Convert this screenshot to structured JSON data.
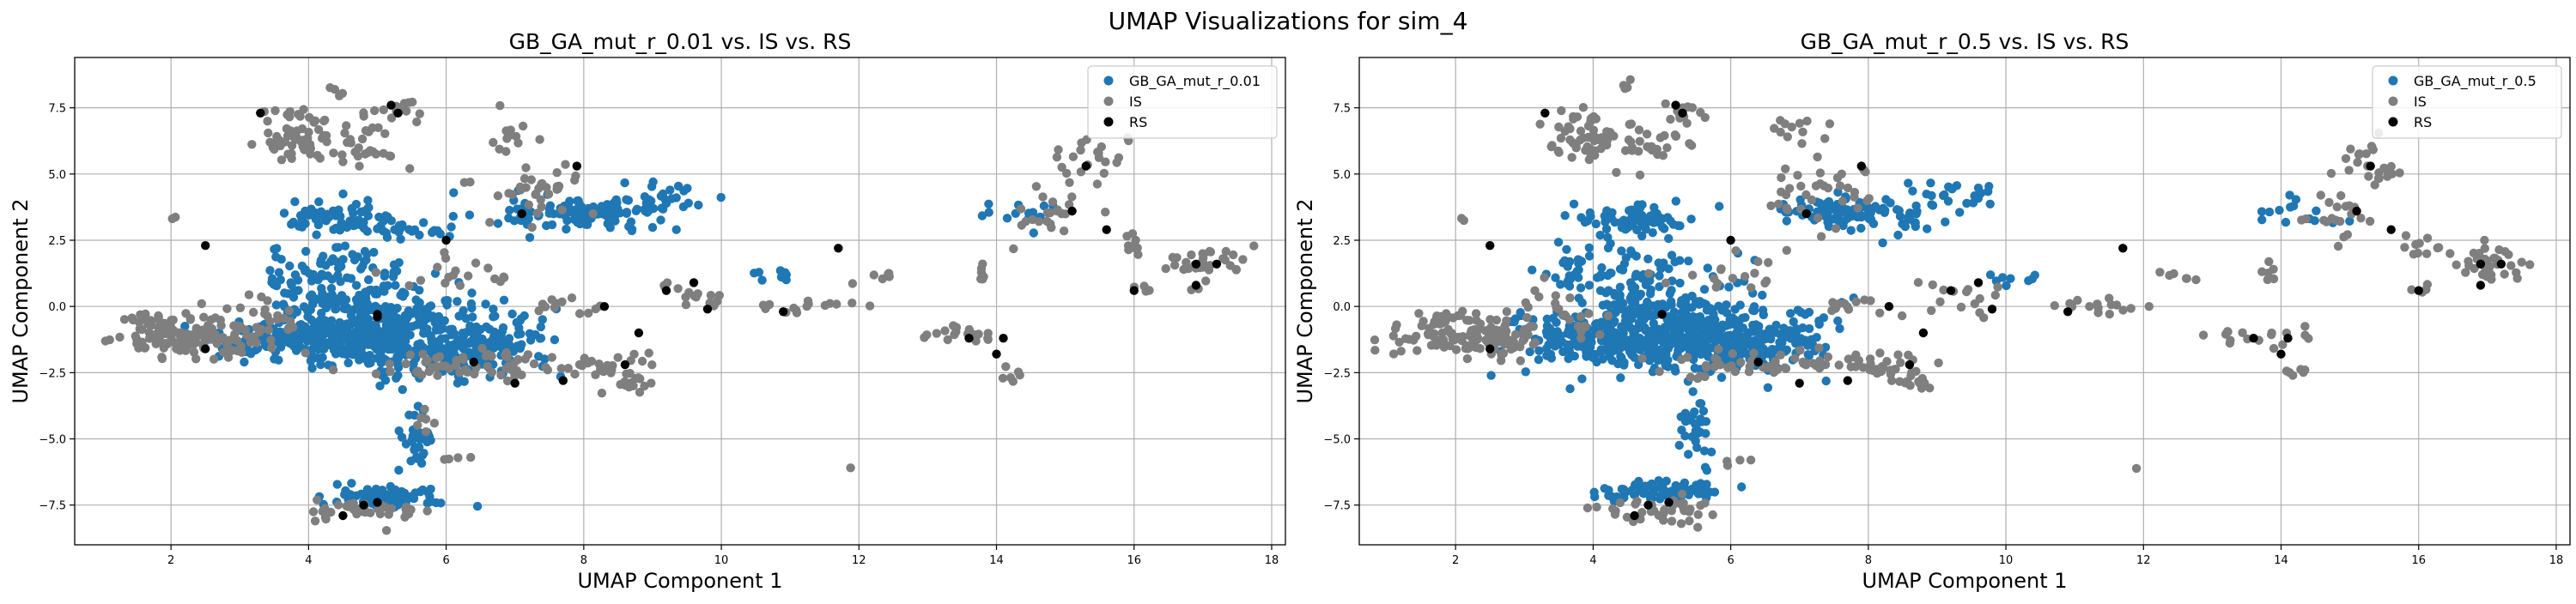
{
  "suptitle": "UMAP Visualizations for sim_4",
  "colors": {
    "ga": "#1f77b4",
    "is": "#7f7f7f",
    "rs": "#000000",
    "grid": "#b0b0b0"
  },
  "chart_data": [
    {
      "type": "scatter",
      "title": "GB_GA_mut_r_0.01 vs. IS vs. RS",
      "xlabel": "UMAP Component 1",
      "ylabel": "UMAP Component 2",
      "xlim": [
        0.6,
        18.2
      ],
      "ylim": [
        -9.0,
        9.4
      ],
      "xticks": [
        2,
        4,
        6,
        8,
        10,
        12,
        14,
        16,
        18
      ],
      "yticks": [
        -7.5,
        -5.0,
        -2.5,
        0.0,
        2.5,
        5.0,
        7.5
      ],
      "grid": true,
      "legend_position": "top-right",
      "series": [
        {
          "name": "GB_GA_mut_r_0.01",
          "color": "#1f77b4",
          "clusters": [
            {
              "x": 5.0,
              "y": -1.0,
              "sx": 0.8,
              "sy": 0.7,
              "n": 420
            },
            {
              "x": 3.6,
              "y": -1.2,
              "sx": 0.5,
              "sy": 0.4,
              "n": 90
            },
            {
              "x": 6.2,
              "y": -1.6,
              "sx": 0.5,
              "sy": 0.5,
              "n": 90
            },
            {
              "x": 4.6,
              "y": 1.0,
              "sx": 0.6,
              "sy": 0.8,
              "n": 90
            },
            {
              "x": 4.5,
              "y": 3.3,
              "sx": 0.4,
              "sy": 0.3,
              "n": 70
            },
            {
              "x": 5.6,
              "y": 2.8,
              "sx": 0.3,
              "sy": 0.2,
              "n": 20
            },
            {
              "x": 8.0,
              "y": 3.5,
              "sx": 0.6,
              "sy": 0.3,
              "n": 110
            },
            {
              "x": 9.2,
              "y": 4.1,
              "sx": 0.3,
              "sy": 0.3,
              "n": 25
            },
            {
              "x": 7.0,
              "y": -1.2,
              "sx": 0.4,
              "sy": 0.6,
              "n": 40
            },
            {
              "x": 5.1,
              "y": -7.2,
              "sx": 0.4,
              "sy": 0.2,
              "n": 70
            },
            {
              "x": 5.6,
              "y": -5.0,
              "sx": 0.15,
              "sy": 0.6,
              "n": 30
            },
            {
              "x": 10.7,
              "y": 1.2,
              "sx": 0.2,
              "sy": 0.2,
              "n": 8
            },
            {
              "x": 14.3,
              "y": 3.6,
              "sx": 0.3,
              "sy": 0.3,
              "n": 14
            },
            {
              "x": 3.7,
              "y": 1.3,
              "sx": 0.3,
              "sy": 0.4,
              "n": 20
            }
          ]
        },
        {
          "name": "IS",
          "color": "#7f7f7f",
          "clusters": [
            {
              "x": 2.3,
              "y": -1.2,
              "sx": 0.55,
              "sy": 0.35,
              "n": 120
            },
            {
              "x": 1.8,
              "y": -0.5,
              "sx": 0.3,
              "sy": 0.15,
              "n": 20
            },
            {
              "x": 3.9,
              "y": 6.3,
              "sx": 0.3,
              "sy": 0.4,
              "n": 50
            },
            {
              "x": 5.3,
              "y": 7.3,
              "sx": 0.2,
              "sy": 0.2,
              "n": 15
            },
            {
              "x": 4.8,
              "y": 6.0,
              "sx": 0.3,
              "sy": 0.4,
              "n": 25
            },
            {
              "x": 7.0,
              "y": 6.6,
              "sx": 0.2,
              "sy": 0.3,
              "n": 12
            },
            {
              "x": 3.8,
              "y": 7.2,
              "sx": 0.2,
              "sy": 0.2,
              "n": 10
            },
            {
              "x": 7.2,
              "y": 4.5,
              "sx": 0.4,
              "sy": 0.6,
              "n": 35
            },
            {
              "x": 6.5,
              "y": -2.2,
              "sx": 0.8,
              "sy": 0.25,
              "n": 60
            },
            {
              "x": 8.4,
              "y": -2.3,
              "sx": 0.35,
              "sy": 0.3,
              "n": 25
            },
            {
              "x": 8.7,
              "y": -2.9,
              "sx": 0.15,
              "sy": 0.15,
              "n": 10
            },
            {
              "x": 9.5,
              "y": 0.3,
              "sx": 0.3,
              "sy": 0.4,
              "n": 15
            },
            {
              "x": 7.8,
              "y": 0.0,
              "sx": 0.3,
              "sy": 0.15,
              "n": 12
            },
            {
              "x": 11.3,
              "y": 0.0,
              "sx": 0.35,
              "sy": 0.15,
              "n": 15
            },
            {
              "x": 12.5,
              "y": 1.1,
              "sx": 0.2,
              "sy": 0.1,
              "n": 6
            },
            {
              "x": 13.6,
              "y": -1.1,
              "sx": 0.35,
              "sy": 0.2,
              "n": 18
            },
            {
              "x": 14.2,
              "y": -2.5,
              "sx": 0.1,
              "sy": 0.2,
              "n": 6
            },
            {
              "x": 13.8,
              "y": 1.3,
              "sx": 0.1,
              "sy": 0.3,
              "n": 6
            },
            {
              "x": 15.3,
              "y": 5.4,
              "sx": 0.3,
              "sy": 0.6,
              "n": 25
            },
            {
              "x": 14.8,
              "y": 3.2,
              "sx": 0.3,
              "sy": 0.4,
              "n": 20
            },
            {
              "x": 16.0,
              "y": 2.4,
              "sx": 0.15,
              "sy": 0.3,
              "n": 10
            },
            {
              "x": 17.0,
              "y": 1.6,
              "sx": 0.3,
              "sy": 0.35,
              "n": 35
            },
            {
              "x": 16.1,
              "y": 0.7,
              "sx": 0.1,
              "sy": 0.1,
              "n": 4
            },
            {
              "x": 4.9,
              "y": -7.7,
              "sx": 0.4,
              "sy": 0.25,
              "n": 40
            },
            {
              "x": 3.4,
              "y": -0.3,
              "sx": 0.4,
              "sy": 0.5,
              "n": 25
            },
            {
              "x": 6.0,
              "y": 1.2,
              "sx": 0.6,
              "sy": 0.5,
              "n": 18
            },
            {
              "x": 5.7,
              "y": -4.0,
              "sx": 0.1,
              "sy": 0.4,
              "n": 6
            },
            {
              "x": 6.1,
              "y": -5.8,
              "sx": 0.1,
              "sy": 0.1,
              "n": 4
            },
            {
              "x": 11.9,
              "y": -6.1,
              "sx": 0.01,
              "sy": 0.01,
              "n": 1
            },
            {
              "x": 4.5,
              "y": 8.3,
              "sx": 0.1,
              "sy": 0.2,
              "n": 4
            },
            {
              "x": 2.1,
              "y": 3.3,
              "sx": 0.05,
              "sy": 0.05,
              "n": 2
            }
          ]
        },
        {
          "name": "RS",
          "color": "#000000",
          "points": [
            [
              3.3,
              7.3
            ],
            [
              5.2,
              7.6
            ],
            [
              2.5,
              2.3
            ],
            [
              2.5,
              -1.6
            ],
            [
              5.0,
              -0.4
            ],
            [
              5.0,
              -7.4
            ],
            [
              4.5,
              -7.9
            ],
            [
              4.8,
              -7.5
            ],
            [
              5.3,
              7.3
            ],
            [
              6.4,
              -2.1
            ],
            [
              7.1,
              3.5
            ],
            [
              7.9,
              5.3
            ],
            [
              8.3,
              0.0
            ],
            [
              8.8,
              -1.0
            ],
            [
              7.7,
              -2.8
            ],
            [
              8.6,
              -2.2
            ],
            [
              9.6,
              0.9
            ],
            [
              9.2,
              0.6
            ],
            [
              9.8,
              -0.1
            ],
            [
              10.9,
              -0.2
            ],
            [
              11.7,
              2.2
            ],
            [
              13.6,
              -1.2
            ],
            [
              14.1,
              -1.2
            ],
            [
              14.0,
              -1.8
            ],
            [
              15.1,
              3.6
            ],
            [
              15.3,
              5.3
            ],
            [
              15.6,
              2.9
            ],
            [
              16.0,
              0.6
            ],
            [
              16.9,
              1.6
            ],
            [
              17.2,
              1.6
            ],
            [
              16.9,
              0.8
            ],
            [
              5.0,
              -0.3
            ],
            [
              6.0,
              2.5
            ],
            [
              7.0,
              -2.9
            ]
          ]
        }
      ]
    },
    {
      "type": "scatter",
      "title": "GB_GA_mut_r_0.5 vs. IS vs. RS",
      "xlabel": "UMAP Component 1",
      "ylabel": "UMAP Component 2",
      "xlim": [
        0.6,
        18.2
      ],
      "ylim": [
        -9.0,
        9.4
      ],
      "xticks": [
        2,
        4,
        6,
        8,
        10,
        12,
        14,
        16,
        18
      ],
      "yticks": [
        -7.5,
        -5.0,
        -2.5,
        0.0,
        2.5,
        5.0,
        7.5
      ],
      "grid": true,
      "legend_position": "top-right",
      "series": [
        {
          "name": "GB_GA_mut_r_0.5",
          "color": "#1f77b4",
          "clusters": [
            {
              "x": 5.1,
              "y": -1.0,
              "sx": 0.8,
              "sy": 0.7,
              "n": 440
            },
            {
              "x": 3.6,
              "y": -1.2,
              "sx": 0.5,
              "sy": 0.4,
              "n": 90
            },
            {
              "x": 6.2,
              "y": -1.6,
              "sx": 0.5,
              "sy": 0.5,
              "n": 90
            },
            {
              "x": 4.6,
              "y": 1.0,
              "sx": 0.6,
              "sy": 0.8,
              "n": 90
            },
            {
              "x": 4.5,
              "y": 3.3,
              "sx": 0.4,
              "sy": 0.3,
              "n": 70
            },
            {
              "x": 7.8,
              "y": 3.5,
              "sx": 0.6,
              "sy": 0.3,
              "n": 110
            },
            {
              "x": 9.3,
              "y": 4.2,
              "sx": 0.3,
              "sy": 0.3,
              "n": 20
            },
            {
              "x": 7.0,
              "y": -1.2,
              "sx": 0.4,
              "sy": 0.6,
              "n": 40
            },
            {
              "x": 5.0,
              "y": -7.0,
              "sx": 0.5,
              "sy": 0.2,
              "n": 80
            },
            {
              "x": 5.5,
              "y": -4.8,
              "sx": 0.15,
              "sy": 0.6,
              "n": 30
            },
            {
              "x": 14.3,
              "y": 3.6,
              "sx": 0.3,
              "sy": 0.3,
              "n": 14
            },
            {
              "x": 3.7,
              "y": 1.3,
              "sx": 0.3,
              "sy": 0.4,
              "n": 20
            },
            {
              "x": 10.3,
              "y": 1.0,
              "sx": 0.3,
              "sy": 0.2,
              "n": 8
            }
          ]
        },
        {
          "name": "IS",
          "color": "#7f7f7f",
          "clusters": [
            {
              "x": 2.3,
              "y": -1.2,
              "sx": 0.55,
              "sy": 0.35,
              "n": 120
            },
            {
              "x": 1.8,
              "y": -0.5,
              "sx": 0.3,
              "sy": 0.15,
              "n": 20
            },
            {
              "x": 3.9,
              "y": 6.3,
              "sx": 0.3,
              "sy": 0.4,
              "n": 50
            },
            {
              "x": 5.3,
              "y": 7.3,
              "sx": 0.2,
              "sy": 0.2,
              "n": 15
            },
            {
              "x": 4.8,
              "y": 6.0,
              "sx": 0.3,
              "sy": 0.4,
              "n": 25
            },
            {
              "x": 7.0,
              "y": 6.6,
              "sx": 0.2,
              "sy": 0.3,
              "n": 12
            },
            {
              "x": 3.8,
              "y": 7.2,
              "sx": 0.2,
              "sy": 0.2,
              "n": 10
            },
            {
              "x": 7.2,
              "y": 4.5,
              "sx": 0.4,
              "sy": 0.6,
              "n": 35
            },
            {
              "x": 6.5,
              "y": -2.2,
              "sx": 0.8,
              "sy": 0.25,
              "n": 60
            },
            {
              "x": 8.4,
              "y": -2.3,
              "sx": 0.35,
              "sy": 0.3,
              "n": 25
            },
            {
              "x": 8.7,
              "y": -2.9,
              "sx": 0.15,
              "sy": 0.15,
              "n": 10
            },
            {
              "x": 9.5,
              "y": 0.3,
              "sx": 0.3,
              "sy": 0.4,
              "n": 15
            },
            {
              "x": 7.8,
              "y": 0.0,
              "sx": 0.3,
              "sy": 0.15,
              "n": 12
            },
            {
              "x": 11.3,
              "y": 0.0,
              "sx": 0.35,
              "sy": 0.15,
              "n": 15
            },
            {
              "x": 12.5,
              "y": 1.1,
              "sx": 0.2,
              "sy": 0.1,
              "n": 6
            },
            {
              "x": 13.6,
              "y": -1.1,
              "sx": 0.35,
              "sy": 0.2,
              "n": 18
            },
            {
              "x": 14.2,
              "y": -2.5,
              "sx": 0.1,
              "sy": 0.2,
              "n": 6
            },
            {
              "x": 13.8,
              "y": 1.3,
              "sx": 0.1,
              "sy": 0.3,
              "n": 6
            },
            {
              "x": 15.3,
              "y": 5.4,
              "sx": 0.3,
              "sy": 0.6,
              "n": 25
            },
            {
              "x": 14.8,
              "y": 3.2,
              "sx": 0.3,
              "sy": 0.4,
              "n": 20
            },
            {
              "x": 16.0,
              "y": 2.4,
              "sx": 0.15,
              "sy": 0.3,
              "n": 10
            },
            {
              "x": 17.0,
              "y": 1.6,
              "sx": 0.3,
              "sy": 0.35,
              "n": 35
            },
            {
              "x": 16.1,
              "y": 0.7,
              "sx": 0.1,
              "sy": 0.1,
              "n": 4
            },
            {
              "x": 4.9,
              "y": -7.7,
              "sx": 0.4,
              "sy": 0.25,
              "n": 40
            },
            {
              "x": 3.4,
              "y": -0.3,
              "sx": 0.4,
              "sy": 0.5,
              "n": 25
            },
            {
              "x": 6.0,
              "y": 1.2,
              "sx": 0.6,
              "sy": 0.5,
              "n": 18
            },
            {
              "x": 6.1,
              "y": -5.8,
              "sx": 0.1,
              "sy": 0.1,
              "n": 4
            },
            {
              "x": 11.9,
              "y": -6.1,
              "sx": 0.01,
              "sy": 0.01,
              "n": 1
            },
            {
              "x": 4.5,
              "y": 8.3,
              "sx": 0.1,
              "sy": 0.2,
              "n": 4
            },
            {
              "x": 2.1,
              "y": 3.3,
              "sx": 0.05,
              "sy": 0.05,
              "n": 2
            }
          ]
        },
        {
          "name": "RS",
          "color": "#000000",
          "points": [
            [
              3.3,
              7.3
            ],
            [
              5.2,
              7.6
            ],
            [
              2.5,
              2.3
            ],
            [
              2.5,
              -1.6
            ],
            [
              5.0,
              -0.3
            ],
            [
              5.1,
              -7.4
            ],
            [
              4.6,
              -7.9
            ],
            [
              4.8,
              -7.5
            ],
            [
              5.3,
              7.3
            ],
            [
              6.4,
              -2.1
            ],
            [
              7.1,
              3.5
            ],
            [
              7.9,
              5.3
            ],
            [
              8.3,
              0.0
            ],
            [
              8.8,
              -1.0
            ],
            [
              7.7,
              -2.8
            ],
            [
              8.6,
              -2.2
            ],
            [
              9.6,
              0.9
            ],
            [
              9.2,
              0.6
            ],
            [
              9.8,
              -0.1
            ],
            [
              10.9,
              -0.2
            ],
            [
              11.7,
              2.2
            ],
            [
              13.6,
              -1.2
            ],
            [
              14.1,
              -1.2
            ],
            [
              14.0,
              -1.8
            ],
            [
              15.1,
              3.6
            ],
            [
              15.3,
              5.3
            ],
            [
              15.6,
              2.9
            ],
            [
              16.0,
              0.6
            ],
            [
              16.9,
              1.6
            ],
            [
              17.2,
              1.6
            ],
            [
              16.9,
              0.8
            ],
            [
              6.0,
              2.5
            ],
            [
              7.0,
              -2.9
            ]
          ]
        }
      ]
    }
  ]
}
